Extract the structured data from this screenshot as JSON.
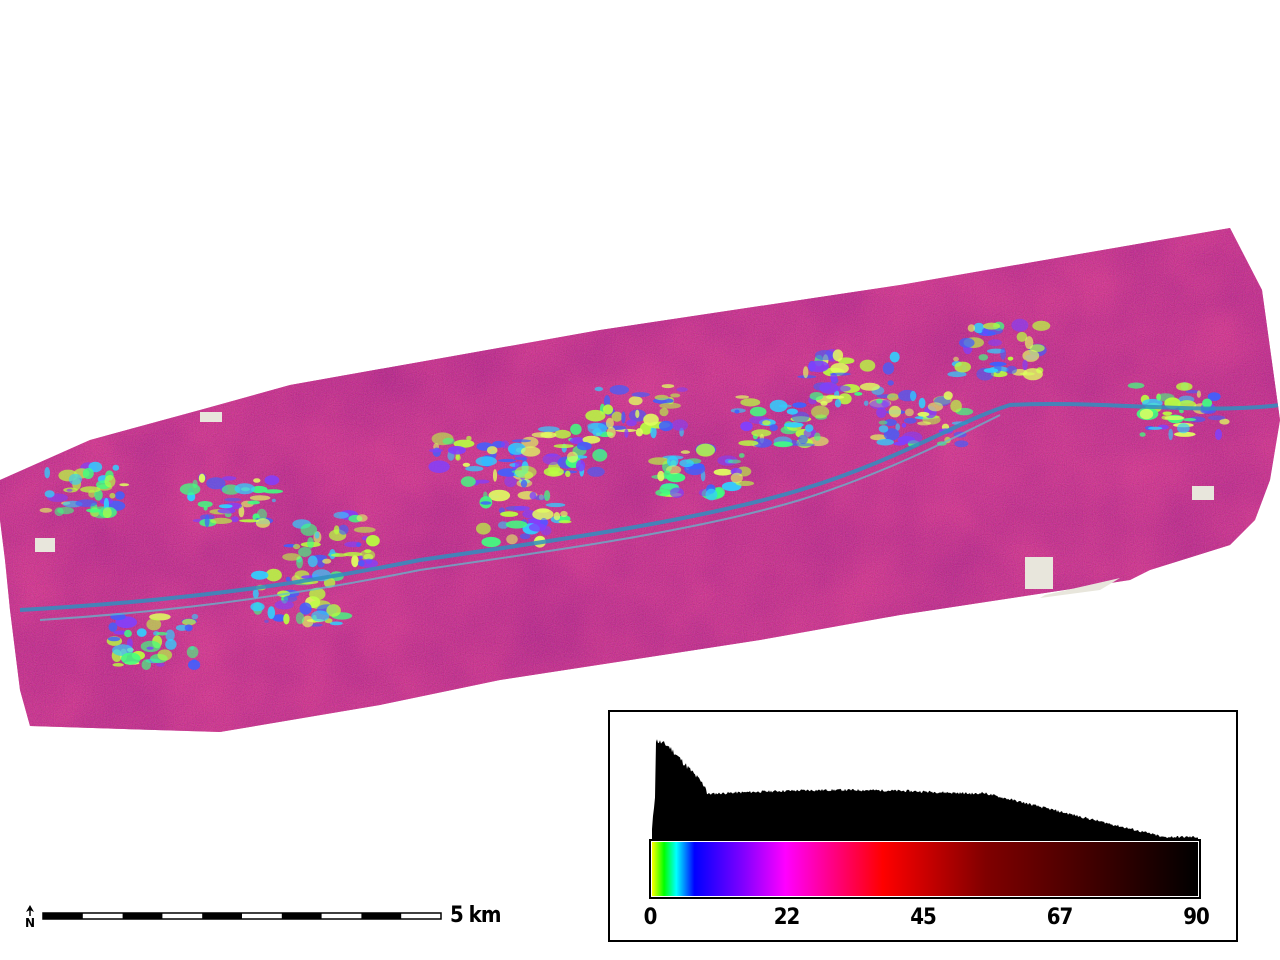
{
  "map": {
    "stops": [
      {
        "v": 0,
        "c": "#ffff00"
      },
      {
        "v": 2,
        "c": "#00ff00"
      },
      {
        "v": 4,
        "c": "#00ffff"
      },
      {
        "v": 7,
        "c": "#0000ff"
      },
      {
        "v": 15,
        "c": "#8000ff"
      },
      {
        "v": 22,
        "c": "#ff00ff"
      },
      {
        "v": 30,
        "c": "#ff0080"
      },
      {
        "v": 38,
        "c": "#ff0000"
      },
      {
        "v": 55,
        "c": "#800000"
      },
      {
        "v": 90,
        "c": "#000000"
      }
    ],
    "dominant_color": "#c8226a"
  },
  "legend": {
    "ticks": [
      "0",
      "22",
      "45",
      "67",
      "90"
    ],
    "range": [
      0,
      90
    ]
  },
  "scale_bar": {
    "label": "5 km",
    "segments": 10
  },
  "north_arrow": {
    "label": "N",
    "icon": "north-arrow-icon"
  }
}
